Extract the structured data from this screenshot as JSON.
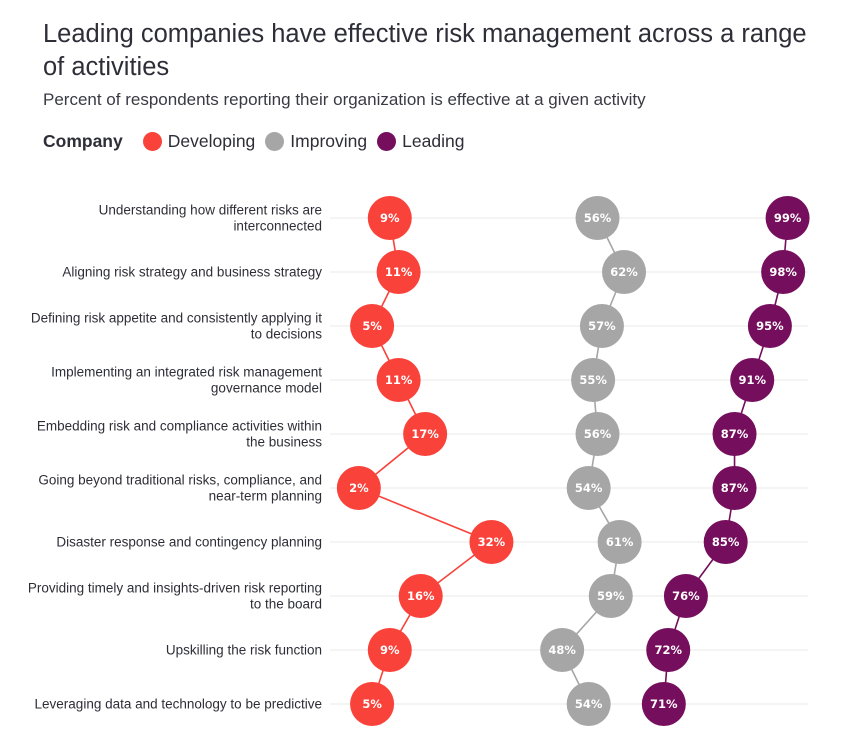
{
  "title": "Leading companies have effective risk management across a range of activities",
  "subtitle": "Percent of respondents reporting their organization is effective at a given activity",
  "legend": {
    "title": "Company",
    "items": [
      {
        "label": "Developing",
        "color": "#f9423a"
      },
      {
        "label": "Improving",
        "color": "#a6a6a6"
      },
      {
        "label": "Leading",
        "color": "#750e5c"
      }
    ]
  },
  "chart_data": {
    "type": "dot",
    "categories": [
      "Understanding how different risks are interconnected",
      "Aligning risk strategy and business strategy",
      "Defining risk appetite and consistently applying it to decisions",
      "Implementing an integrated risk management governance model",
      "Embedding risk and compliance activities within the business",
      "Going beyond traditional risks, compliance, and near-term planning",
      "Disaster response and contingency planning",
      "Providing timely and insights-driven risk reporting to the board",
      "Upskilling the risk function",
      "Leveraging data and technology to be predictive"
    ],
    "series": [
      {
        "name": "Developing",
        "color": "#f9423a",
        "values": [
          9,
          11,
          5,
          11,
          17,
          2,
          32,
          16,
          9,
          5
        ]
      },
      {
        "name": "Improving",
        "color": "#a6a6a6",
        "values": [
          56,
          62,
          57,
          55,
          56,
          54,
          61,
          59,
          48,
          54
        ]
      },
      {
        "name": "Leading",
        "color": "#750e5c",
        "values": [
          99,
          98,
          95,
          91,
          87,
          87,
          85,
          76,
          72,
          71
        ]
      }
    ],
    "value_suffix": "%"
  }
}
